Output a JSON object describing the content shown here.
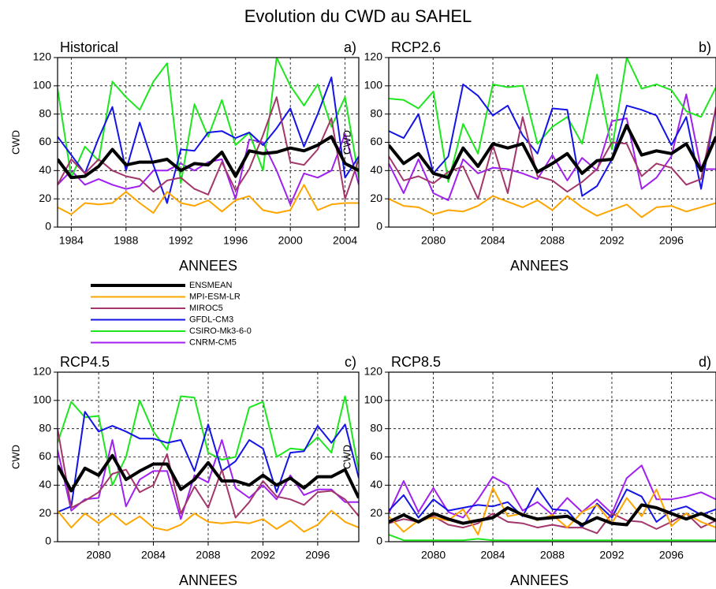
{
  "title": "Evolution du CWD au SAHEL",
  "chart_data": [
    {
      "type": "line",
      "title": "Historical",
      "panel_label": "a)",
      "xlabel": "ANNEES",
      "ylabel": "CWD",
      "x": [
        1983,
        1984,
        1985,
        1986,
        1987,
        1988,
        1989,
        1990,
        1991,
        1992,
        1993,
        1994,
        1995,
        1996,
        1997,
        1998,
        1999,
        2000,
        2001,
        2002,
        2003,
        2004,
        2005
      ],
      "xlim": [
        1983,
        2005
      ],
      "xticks": [
        1984,
        1988,
        1992,
        1996,
        2000,
        2004
      ],
      "ylim": [
        0,
        120
      ],
      "yticks": [
        0,
        20,
        40,
        60,
        80,
        100,
        120
      ],
      "grid": true,
      "series": [
        {
          "name": "ENSMEAN",
          "color": "#000000",
          "values": [
            48,
            35,
            36,
            43,
            55,
            44,
            46,
            46,
            48,
            40,
            45,
            44,
            53,
            36,
            54,
            52,
            53,
            56,
            54,
            58,
            64,
            45,
            40
          ]
        },
        {
          "name": "MPI-ESM-LR",
          "color": "#ffa500",
          "values": [
            14,
            9,
            17,
            16,
            17,
            25,
            17,
            10,
            25,
            17,
            15,
            19,
            11,
            19,
            22,
            12,
            10,
            12,
            30,
            12,
            16,
            17,
            17
          ]
        },
        {
          "name": "MIROC5",
          "color": "#a3366a",
          "values": [
            30,
            48,
            38,
            48,
            40,
            36,
            34,
            25,
            33,
            35,
            27,
            23,
            46,
            26,
            41,
            65,
            92,
            46,
            44,
            55,
            77,
            20,
            48
          ]
        },
        {
          "name": "GFDL-CM3",
          "color": "#1414e6",
          "values": [
            64,
            51,
            38,
            63,
            85,
            40,
            74,
            44,
            17,
            55,
            54,
            67,
            68,
            63,
            67,
            58,
            70,
            84,
            57,
            80,
            106,
            35,
            50
          ]
        },
        {
          "name": "CSIRO-Mk3-6-0",
          "color": "#1ee61e",
          "values": [
            98,
            35,
            57,
            47,
            103,
            92,
            83,
            103,
            116,
            31,
            87,
            64,
            90,
            58,
            67,
            40,
            120,
            100,
            86,
            101,
            71,
            92,
            35
          ]
        },
        {
          "name": "CNRM-CM5",
          "color": "#a020f0",
          "values": [
            30,
            40,
            30,
            34,
            30,
            27,
            29,
            40,
            40,
            45,
            40,
            46,
            48,
            20,
            62,
            60,
            40,
            16,
            38,
            35,
            40,
            66,
            30
          ]
        }
      ]
    },
    {
      "type": "line",
      "title": "RCP2.6",
      "panel_label": "b)",
      "xlabel": "ANNEES",
      "ylabel": "CWD",
      "x": [
        2077,
        2078,
        2079,
        2080,
        2081,
        2082,
        2083,
        2084,
        2085,
        2086,
        2087,
        2088,
        2089,
        2090,
        2091,
        2092,
        2093,
        2094,
        2095,
        2096,
        2097,
        2098,
        2099
      ],
      "xlim": [
        2077,
        2099
      ],
      "xticks": [
        2080,
        2084,
        2088,
        2092,
        2096
      ],
      "ylim": [
        0,
        120
      ],
      "yticks": [
        0,
        20,
        40,
        60,
        80,
        100,
        120
      ],
      "grid": true,
      "series": [
        {
          "color": "#000000",
          "values": [
            58,
            45,
            52,
            38,
            35,
            56,
            43,
            59,
            56,
            59,
            39,
            45,
            52,
            38,
            47,
            48,
            72,
            51,
            54,
            52,
            59,
            40,
            64
          ]
        },
        {
          "color": "#ffa500",
          "values": [
            20,
            15,
            14,
            9,
            12,
            11,
            15,
            22,
            18,
            14,
            19,
            12,
            22,
            14,
            8,
            12,
            16,
            7,
            14,
            15,
            11,
            14,
            17
          ]
        },
        {
          "color": "#a3366a",
          "values": [
            50,
            33,
            36,
            31,
            39,
            43,
            20,
            58,
            24,
            78,
            36,
            33,
            25,
            32,
            41,
            60,
            59,
            36,
            45,
            42,
            30,
            34,
            85
          ]
        },
        {
          "color": "#1414e6",
          "values": [
            68,
            63,
            80,
            38,
            50,
            101,
            93,
            79,
            86,
            65,
            52,
            84,
            83,
            22,
            29,
            48,
            86,
            83,
            79,
            58,
            78,
            27,
            85
          ]
        },
        {
          "color": "#1ee61e",
          "values": [
            91,
            90,
            84,
            96,
            32,
            73,
            52,
            101,
            99,
            100,
            59,
            71,
            78,
            59,
            108,
            55,
            120,
            98,
            101,
            97,
            82,
            78,
            99
          ]
        },
        {
          "color": "#a020f0",
          "values": [
            45,
            24,
            48,
            24,
            19,
            48,
            38,
            42,
            41,
            38,
            34,
            51,
            33,
            49,
            40,
            75,
            77,
            27,
            35,
            50,
            94,
            41,
            41
          ]
        }
      ]
    },
    {
      "type": "line",
      "title": "RCP4.5",
      "panel_label": "c)",
      "xlabel": "ANNEES",
      "ylabel": "CWD",
      "x": [
        2077,
        2078,
        2079,
        2080,
        2081,
        2082,
        2083,
        2084,
        2085,
        2086,
        2087,
        2088,
        2089,
        2090,
        2091,
        2092,
        2093,
        2094,
        2095,
        2096,
        2097,
        2098,
        2099
      ],
      "xlim": [
        2077,
        2099
      ],
      "xticks": [
        2080,
        2084,
        2088,
        2092,
        2096
      ],
      "ylim": [
        0,
        120
      ],
      "yticks": [
        0,
        20,
        40,
        60,
        80,
        100,
        120
      ],
      "grid": true,
      "series": [
        {
          "color": "#000000",
          "values": [
            54,
            36,
            52,
            47,
            61,
            44,
            50,
            55,
            55,
            37,
            44,
            56,
            43,
            43,
            40,
            47,
            40,
            45,
            38,
            46,
            46,
            51,
            31
          ]
        },
        {
          "color": "#ffa500",
          "values": [
            22,
            10,
            20,
            13,
            20,
            12,
            18,
            10,
            8,
            12,
            20,
            14,
            13,
            14,
            13,
            16,
            9,
            15,
            7,
            12,
            22,
            14,
            10
          ]
        },
        {
          "color": "#a3366a",
          "values": [
            80,
            24,
            29,
            35,
            48,
            51,
            35,
            40,
            62,
            20,
            39,
            24,
            51,
            17,
            28,
            43,
            32,
            30,
            26,
            35,
            36,
            30,
            18
          ]
        },
        {
          "color": "#1414e6",
          "values": [
            21,
            25,
            92,
            78,
            82,
            78,
            73,
            73,
            70,
            72,
            50,
            83,
            50,
            57,
            72,
            66,
            35,
            63,
            64,
            82,
            70,
            83,
            45
          ]
        },
        {
          "color": "#1ee61e",
          "values": [
            70,
            99,
            88,
            89,
            40,
            60,
            100,
            78,
            65,
            103,
            102,
            63,
            58,
            60,
            95,
            99,
            60,
            66,
            65,
            74,
            63,
            103,
            50
          ]
        },
        {
          "color": "#a020f0",
          "values": [
            65,
            22,
            30,
            31,
            72,
            25,
            44,
            50,
            50,
            16,
            47,
            42,
            72,
            38,
            31,
            40,
            30,
            47,
            33,
            37,
            37,
            28,
            28
          ]
        }
      ]
    },
    {
      "type": "line",
      "title": "RCP8.5",
      "panel_label": "d)",
      "xlabel": "ANNEES",
      "ylabel": "CWD",
      "x": [
        2077,
        2078,
        2079,
        2080,
        2081,
        2082,
        2083,
        2084,
        2085,
        2086,
        2087,
        2088,
        2089,
        2090,
        2091,
        2092,
        2093,
        2094,
        2095,
        2096,
        2097,
        2098,
        2099
      ],
      "xlim": [
        2077,
        2099
      ],
      "xticks": [
        2080,
        2084,
        2088,
        2092,
        2096
      ],
      "ylim": [
        0,
        120
      ],
      "yticks": [
        0,
        20,
        40,
        60,
        80,
        100,
        120
      ],
      "grid": true,
      "series": [
        {
          "color": "#000000",
          "values": [
            14,
            19,
            14,
            20,
            16,
            13,
            15,
            17,
            24,
            19,
            16,
            17,
            18,
            12,
            17,
            13,
            12,
            26,
            24,
            20,
            16,
            20,
            15
          ]
        },
        {
          "color": "#ffa500",
          "values": [
            18,
            7,
            15,
            17,
            15,
            23,
            5,
            38,
            18,
            20,
            15,
            19,
            10,
            21,
            26,
            13,
            31,
            18,
            37,
            11,
            20,
            14,
            10
          ]
        },
        {
          "color": "#a3366a",
          "values": [
            13,
            16,
            14,
            18,
            12,
            10,
            13,
            20,
            14,
            13,
            10,
            12,
            10,
            10,
            6,
            20,
            15,
            14,
            9,
            14,
            20,
            10,
            15
          ]
        },
        {
          "color": "#1414e6",
          "values": [
            22,
            33,
            17,
            30,
            22,
            24,
            26,
            25,
            28,
            18,
            38,
            23,
            22,
            10,
            27,
            17,
            37,
            32,
            14,
            22,
            25,
            19,
            23
          ]
        },
        {
          "color": "#1ee61e",
          "values": [
            5,
            1,
            1,
            1,
            1,
            1,
            2,
            1,
            1,
            1,
            1,
            1,
            1,
            1,
            1,
            1,
            1,
            1,
            1,
            1,
            1,
            1,
            1
          ]
        },
        {
          "color": "#a020f0",
          "values": [
            20,
            43,
            21,
            38,
            21,
            17,
            30,
            46,
            40,
            22,
            28,
            19,
            31,
            21,
            30,
            20,
            45,
            54,
            30,
            30,
            32,
            35,
            30
          ]
        }
      ]
    }
  ]
}
